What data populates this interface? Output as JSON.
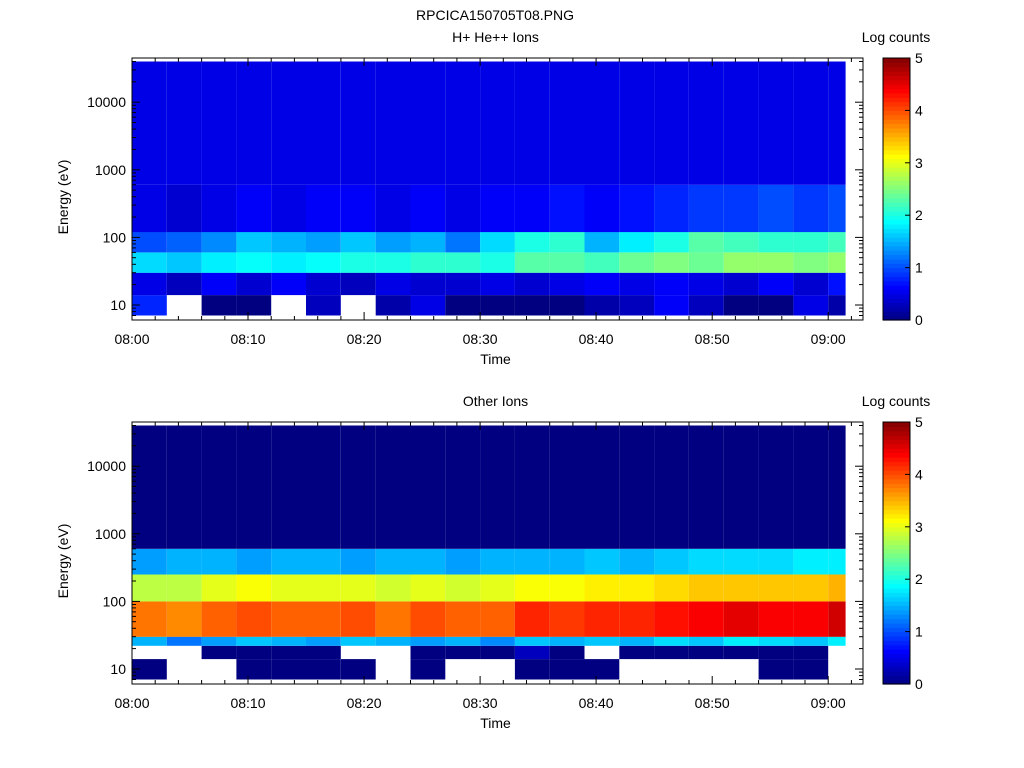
{
  "figure": {
    "title": "RPCICA150705T08.PNG"
  },
  "chart_data": [
    {
      "type": "heatmap",
      "title": "H+ He++ Ions",
      "xlabel": "Time",
      "ylabel": "Energy (eV)",
      "x_ticks": [
        "08:00",
        "08:10",
        "08:20",
        "08:30",
        "08:40",
        "08:50",
        "09:00"
      ],
      "x_range": [
        "08:00",
        "09:03"
      ],
      "y_scale": "log",
      "y_ticks": [
        "10",
        "100",
        "1000",
        "10000"
      ],
      "y_range": [
        6,
        45000
      ],
      "colorbar": {
        "label": "Log counts",
        "range": [
          0,
          5
        ],
        "ticks": [
          "0",
          "1",
          "2",
          "3",
          "4",
          "5"
        ]
      },
      "time_bins": [
        "08:00",
        "08:03",
        "08:06",
        "08:09",
        "08:12",
        "08:15",
        "08:18",
        "08:21",
        "08:24",
        "08:27",
        "08:30",
        "08:33",
        "08:36",
        "08:39",
        "08:42",
        "08:45",
        "08:48",
        "08:51",
        "08:54",
        "08:57",
        "09:00"
      ],
      "energy_bands": [
        {
          "band": "7-14 eV",
          "log_counts": [
            0.8,
            null,
            0,
            0,
            null,
            0.3,
            null,
            0.2,
            0.5,
            0,
            0,
            0,
            0,
            0.2,
            0.3,
            0.6,
            0.3,
            0,
            0,
            0.5,
            0.2
          ]
        },
        {
          "band": "14-30 eV",
          "log_counts": [
            0.5,
            0.3,
            0.6,
            0.4,
            0.6,
            0.4,
            0.3,
            0.5,
            0.4,
            0.4,
            0.5,
            0.4,
            0.5,
            0.6,
            0.5,
            0.6,
            0.5,
            0.4,
            0.6,
            0.4,
            0.7
          ]
        },
        {
          "band": "30-60 eV",
          "log_counts": [
            1.7,
            1.6,
            1.8,
            1.9,
            1.8,
            1.9,
            2.0,
            2.0,
            2.1,
            2.1,
            2.0,
            2.3,
            2.3,
            2.2,
            2.4,
            2.5,
            2.4,
            2.6,
            2.6,
            2.5,
            2.6
          ]
        },
        {
          "band": "60-120 eV",
          "log_counts": [
            1.0,
            1.1,
            1.3,
            1.6,
            1.5,
            1.4,
            1.6,
            1.4,
            1.5,
            1.2,
            1.7,
            2.0,
            2.1,
            1.5,
            1.8,
            2.0,
            2.3,
            2.2,
            2.1,
            2.1,
            2.2
          ]
        },
        {
          "band": "120-600 eV",
          "log_counts": [
            0.5,
            0.4,
            0.5,
            0.6,
            0.5,
            0.6,
            0.6,
            0.5,
            0.6,
            0.5,
            0.6,
            0.6,
            0.7,
            0.6,
            0.7,
            0.8,
            0.9,
            0.9,
            1.0,
            0.9,
            1.0
          ]
        },
        {
          "band": "600-40000 eV",
          "log_counts": [
            0.5,
            0.5,
            0.5,
            0.5,
            0.5,
            0.5,
            0.5,
            0.5,
            0.5,
            0.5,
            0.5,
            0.5,
            0.5,
            0.5,
            0.5,
            0.5,
            0.5,
            0.5,
            0.5,
            0.5,
            0.5
          ]
        }
      ]
    },
    {
      "type": "heatmap",
      "title": "Other Ions",
      "xlabel": "Time",
      "ylabel": "Energy (eV)",
      "x_ticks": [
        "08:00",
        "08:10",
        "08:20",
        "08:30",
        "08:40",
        "08:50",
        "09:00"
      ],
      "x_range": [
        "08:00",
        "09:03"
      ],
      "y_scale": "log",
      "y_ticks": [
        "10",
        "100",
        "1000",
        "10000"
      ],
      "y_range": [
        6,
        45000
      ],
      "colorbar": {
        "label": "Log counts",
        "range": [
          0,
          5
        ],
        "ticks": [
          "0",
          "1",
          "2",
          "3",
          "4",
          "5"
        ]
      },
      "time_bins": [
        "08:00",
        "08:03",
        "08:06",
        "08:09",
        "08:12",
        "08:15",
        "08:18",
        "08:21",
        "08:24",
        "08:27",
        "08:30",
        "08:33",
        "08:36",
        "08:39",
        "08:42",
        "08:45",
        "08:48",
        "08:51",
        "08:54",
        "08:57",
        "09:00"
      ],
      "energy_bands": [
        {
          "band": "7-14 eV",
          "log_counts": [
            0,
            null,
            null,
            0,
            0,
            0,
            0,
            null,
            0,
            null,
            null,
            0,
            0,
            0,
            null,
            null,
            null,
            null,
            0,
            0,
            null
          ]
        },
        {
          "band": "14-22 eV",
          "log_counts": [
            null,
            null,
            0,
            0,
            0,
            0,
            null,
            null,
            0,
            0,
            0,
            0.3,
            0,
            null,
            0,
            0,
            0,
            0,
            0,
            0,
            null
          ]
        },
        {
          "band": "22-30 eV",
          "log_counts": [
            1.5,
            1.2,
            1.4,
            1.6,
            1.5,
            1.4,
            1.6,
            1.5,
            1.4,
            1.5,
            1.3,
            1.6,
            1.5,
            1.6,
            1.5,
            1.7,
            1.6,
            1.8,
            1.7,
            1.6,
            1.8
          ]
        },
        {
          "band": "30-100 eV",
          "log_counts": [
            3.8,
            3.7,
            3.9,
            4.0,
            3.9,
            3.9,
            4.0,
            3.8,
            4.0,
            3.9,
            3.9,
            4.2,
            4.1,
            4.2,
            4.2,
            4.3,
            4.4,
            4.5,
            4.4,
            4.4,
            4.6
          ]
        },
        {
          "band": "100-250 eV",
          "log_counts": [
            2.8,
            2.8,
            3.0,
            3.1,
            3.0,
            3.0,
            3.0,
            2.9,
            3.0,
            2.9,
            3.0,
            3.1,
            3.1,
            3.2,
            3.2,
            3.3,
            3.4,
            3.4,
            3.4,
            3.4,
            3.5
          ]
        },
        {
          "band": "250-600 eV",
          "log_counts": [
            1.4,
            1.5,
            1.5,
            1.4,
            1.5,
            1.5,
            1.4,
            1.5,
            1.5,
            1.4,
            1.5,
            1.5,
            1.5,
            1.6,
            1.5,
            1.6,
            1.7,
            1.7,
            1.7,
            1.8,
            1.8
          ]
        },
        {
          "band": "600-40000 eV",
          "log_counts": [
            0,
            0,
            0,
            0,
            0,
            0,
            0,
            0,
            0,
            0,
            0,
            0,
            0,
            0,
            0,
            0,
            0,
            0,
            0,
            0,
            0
          ]
        }
      ]
    }
  ]
}
